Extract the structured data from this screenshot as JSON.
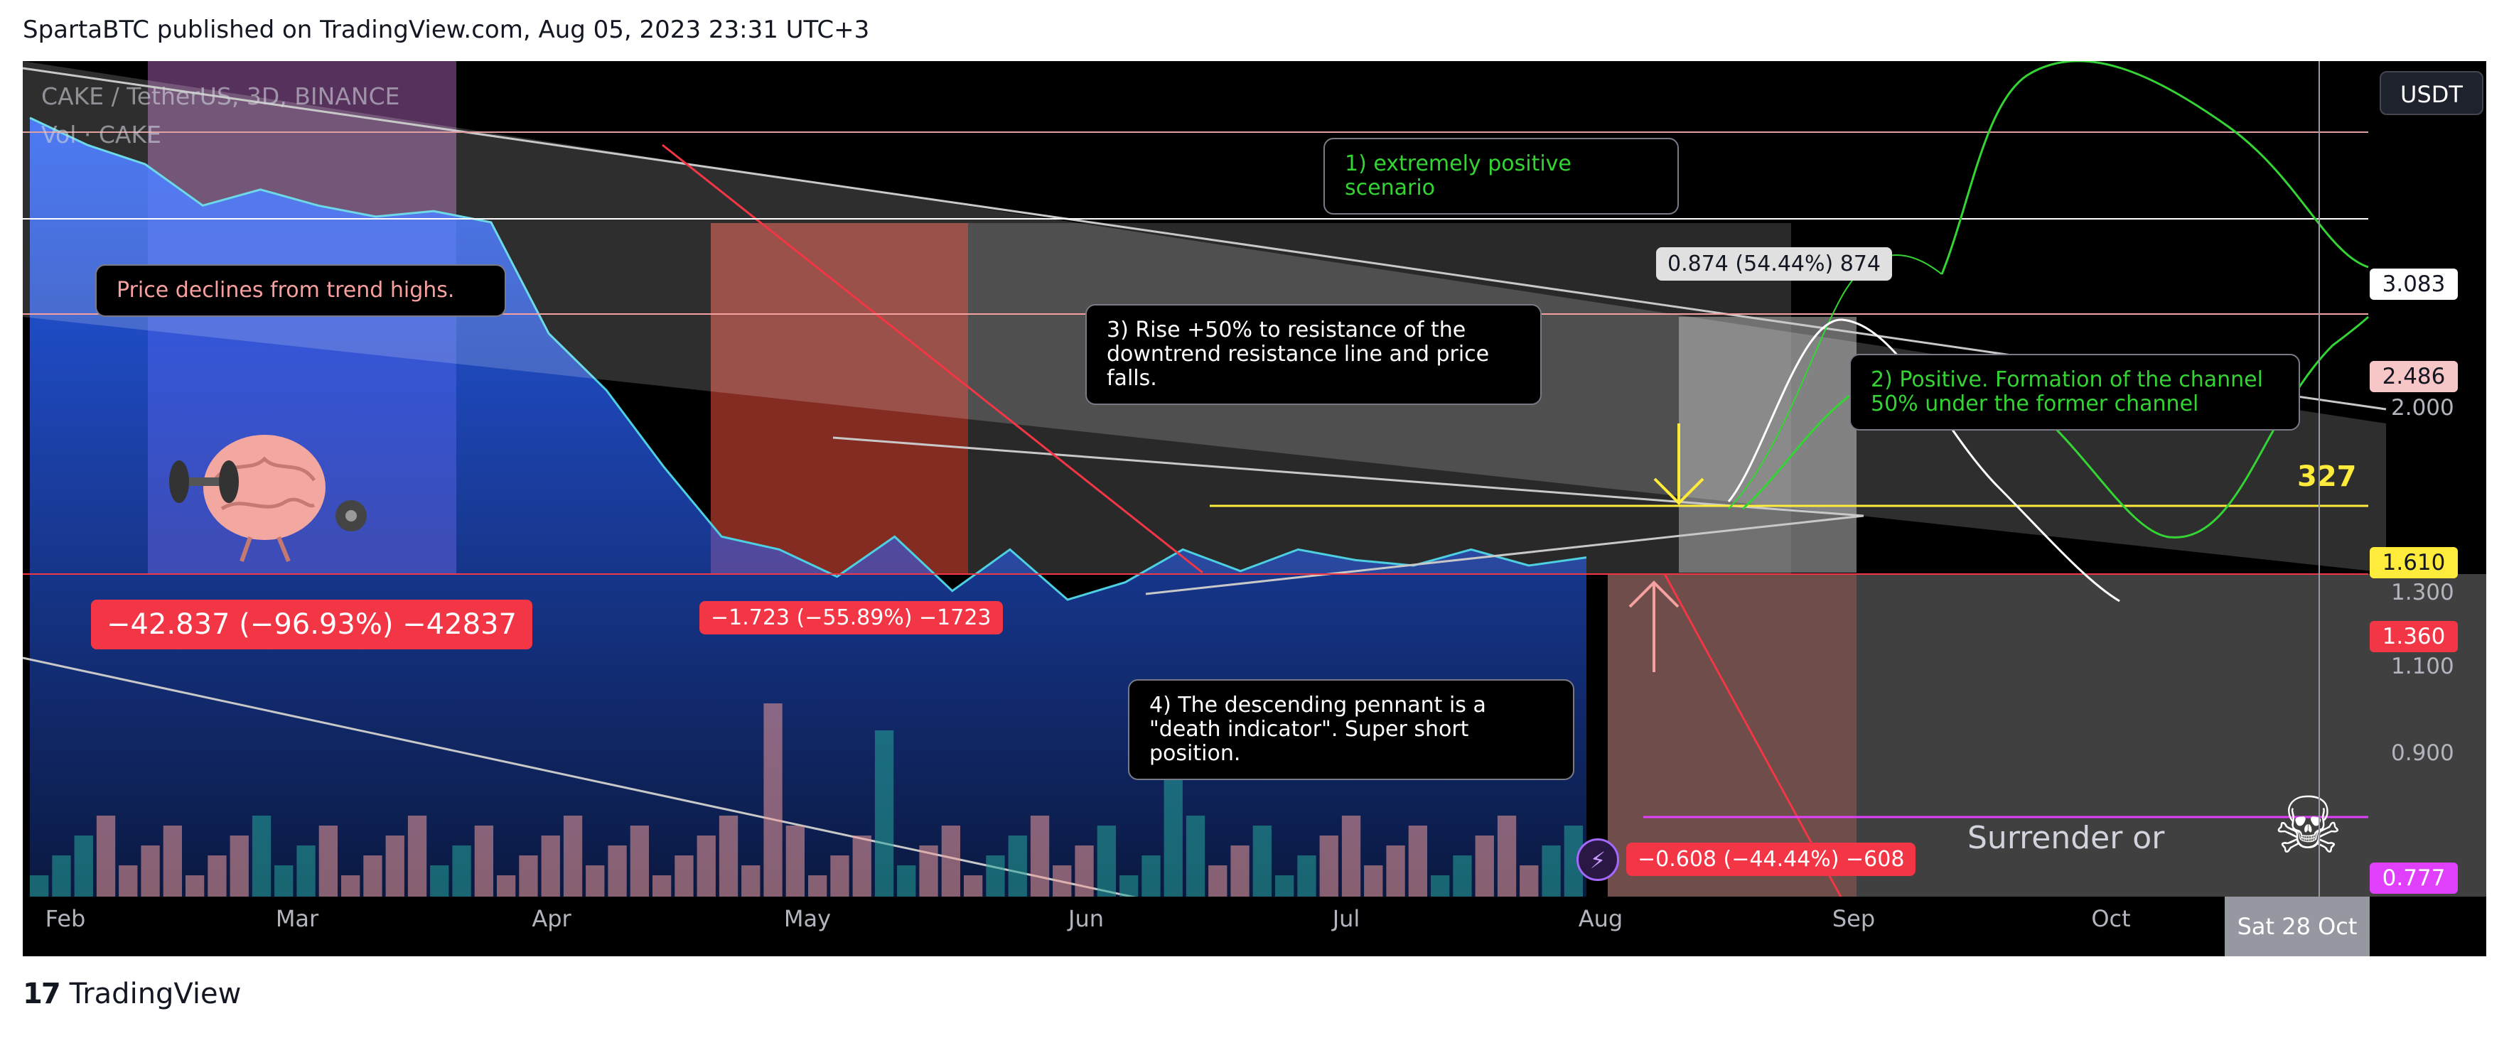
{
  "header": {
    "text": "SpartaBTC published on TradingView.com, Aug 05, 2023 23:31 UTC+3"
  },
  "symbol": {
    "line1": "CAKE / TetherUS, 3D, BINANCE",
    "line2": "Vol · CAKE"
  },
  "currency_button": "USDT",
  "annotations": {
    "scenario1": "1) extremely positive scenario",
    "scenario2": "2) Positive. Formation of the channel\n50% under the former channel",
    "scenario3": "3) Rise +50% to resistance of the\ndowntrend resistance line and price falls.",
    "scenario4": "4) The descending pennant is a\n\"death indicator\". Super short position.",
    "price_declines": "Price declines from trend highs.",
    "surrender": "Surrender or"
  },
  "badges": {
    "measure1": "−42.837 (−96.93%) −42837",
    "measure2": "−1.723 (−55.89%) −1723",
    "measure3": "0.874 (54.44%) 874",
    "measure4": "−0.608 (−44.44%) −608",
    "countdown": "327"
  },
  "price_labels": [
    {
      "text": "3.083",
      "bg": "#ffffff",
      "fg": "#131722"
    },
    {
      "text": "2.486",
      "bg": "#f7c6c6",
      "fg": "#131722"
    },
    {
      "text": "1.610",
      "bg": "#ffeb3b",
      "fg": "#131722"
    },
    {
      "text": "1.360",
      "bg": "#f23645",
      "fg": "#ffffff"
    },
    {
      "text": "0.777",
      "bg": "#e040fb",
      "fg": "#ffffff"
    }
  ],
  "axis_prices": [
    "2.000",
    "1.300",
    "1.100",
    "0.900"
  ],
  "time_labels": [
    "Feb",
    "Mar",
    "Apr",
    "May",
    "Jun",
    "Jul",
    "Aug",
    "Sep",
    "Oct"
  ],
  "crosshair_date": "Sat 28 Oct",
  "footer": {
    "brand": "TradingView",
    "mark": "17"
  },
  "colors": {
    "background": "#000000",
    "price_line": "#4dd0e1",
    "area_fill": "#2962ff",
    "scenario_positive": "#33d433",
    "projection_white": "#ffffff",
    "downtrend_red": "#f23645",
    "support_yellow": "#ffeb3b",
    "volume_up": "#26a69a",
    "volume_down": "#ef9a9a"
  },
  "chart_data": {
    "type": "line",
    "symbol": "CAKE / TetherUS",
    "interval": "3D",
    "exchange": "BINANCE",
    "y_axis_scale": "log",
    "x": [
      "2023-01-30",
      "2023-02-08",
      "2023-02-17",
      "2023-02-26",
      "2023-03-07",
      "2023-03-16",
      "2023-03-25",
      "2023-04-03",
      "2023-04-12",
      "2023-04-18",
      "2023-04-24",
      "2023-04-30",
      "2023-05-06",
      "2023-05-12",
      "2023-05-18",
      "2023-05-24",
      "2023-05-30",
      "2023-06-05",
      "2023-06-11",
      "2023-06-17",
      "2023-06-23",
      "2023-06-29",
      "2023-07-05",
      "2023-07-11",
      "2023-07-17",
      "2023-07-23",
      "2023-07-29",
      "2023-08-04"
    ],
    "close": [
      4.5,
      4.2,
      4.0,
      3.6,
      3.75,
      3.6,
      3.5,
      3.55,
      3.45,
      2.6,
      2.25,
      1.85,
      1.55,
      1.5,
      1.4,
      1.55,
      1.35,
      1.5,
      1.32,
      1.38,
      1.5,
      1.42,
      1.5,
      1.46,
      1.44,
      1.5,
      1.44,
      1.47
    ],
    "price_levels": [
      3.083,
      2.486,
      1.61,
      1.36,
      0.777
    ],
    "measurements": [
      {
        "label": "−42.837 (−96.93%) −42837",
        "change": -42.837,
        "percent": -96.93
      },
      {
        "label": "−1.723 (−55.89%) −1723",
        "change": -1.723,
        "percent": -55.89
      },
      {
        "label": "0.874 (54.44%) 874",
        "change": 0.874,
        "percent": 54.44
      },
      {
        "label": "−0.608 (−44.44%) −608",
        "change": -0.608,
        "percent": -44.44
      }
    ],
    "scenarios": [
      "1) extremely positive scenario",
      "2) Positive. Formation of the channel 50% under the former channel",
      "3) Rise +50% to resistance of the downtrend resistance line and price falls.",
      "4) The descending pennant is a \"death indicator\". Super short position."
    ],
    "xlabel": "",
    "ylabel": "",
    "grid": false,
    "legend": "top-left"
  }
}
